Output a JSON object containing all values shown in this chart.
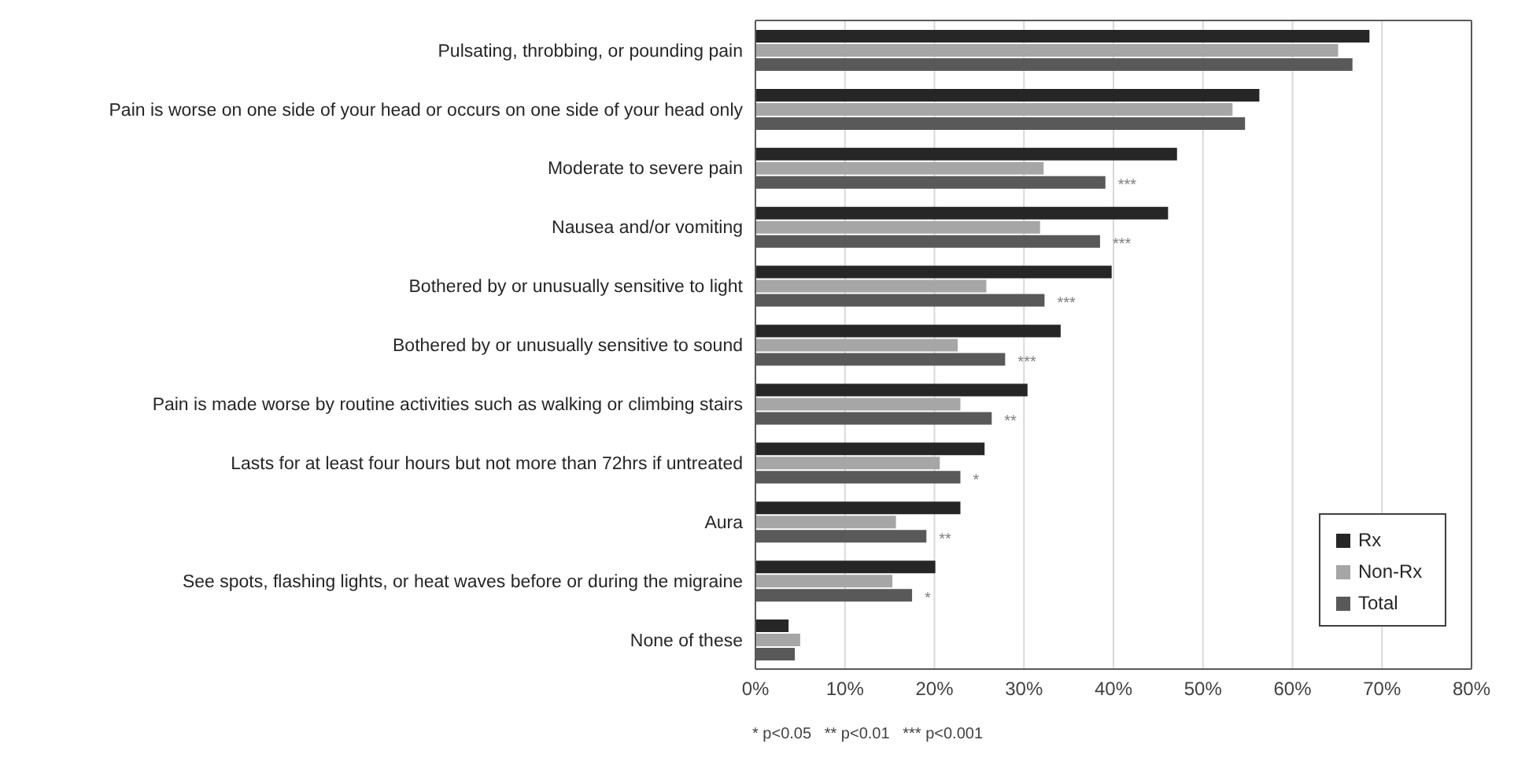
{
  "chart_data": {
    "type": "bar",
    "orientation": "horizontal",
    "categories": [
      "Pulsating, throbbing, or pounding pain",
      "Pain is worse on one side of your head or occurs on one side of your head only",
      "Moderate to severe pain",
      "Nausea and/or vomiting",
      "Bothered by or unusually sensitive to light",
      "Bothered by or unusually sensitive to sound",
      "Pain is made worse by routine activities such as walking or climbing stairs",
      "Lasts for at least four hours but not more than 72hrs if untreated",
      "Aura",
      "See spots, flashing lights, or heat waves before or during the migraine",
      "None of these"
    ],
    "series": [
      {
        "name": "Rx",
        "color": "#262626",
        "values": [
          68.6,
          56.3,
          47.1,
          46.1,
          39.8,
          34.1,
          30.4,
          25.6,
          22.9,
          20.1,
          3.7
        ]
      },
      {
        "name": "Non-Rx",
        "color": "#a6a6a6",
        "values": [
          65.1,
          53.3,
          32.2,
          31.8,
          25.8,
          22.6,
          22.9,
          20.6,
          15.7,
          15.3,
          5.0
        ]
      },
      {
        "name": "Total",
        "color": "#595959",
        "values": [
          66.7,
          54.7,
          39.1,
          38.5,
          32.3,
          27.9,
          26.4,
          22.9,
          19.1,
          17.5,
          4.4
        ]
      }
    ],
    "xlim": [
      0,
      80
    ],
    "xticks": [
      {
        "value": 0,
        "label": "0%"
      },
      {
        "value": 10,
        "label": "10%"
      },
      {
        "value": 20,
        "label": "20%"
      },
      {
        "value": 30,
        "label": "30%"
      },
      {
        "value": 40,
        "label": "40%"
      },
      {
        "value": 50,
        "label": "50%"
      },
      {
        "value": 60,
        "label": "60%"
      },
      {
        "value": 70,
        "label": "70%"
      },
      {
        "value": 80,
        "label": "80%"
      }
    ],
    "grid": "x",
    "legend": "bottom right",
    "annotations": [
      {
        "text": "***",
        "x": 39.1,
        "y": "Moderate to severe pain"
      },
      {
        "text": "***",
        "x": 38.5,
        "y": "Nausea and/or vomiting"
      },
      {
        "text": "***",
        "x": 32.3,
        "y": "Bothered by or unusually sensitive to light"
      },
      {
        "text": "***",
        "x": 27.9,
        "y": "Bothered by or unusually sensitive to sound"
      },
      {
        "text": "**",
        "x": 26.4,
        "y": "Pain is made worse by routine activities such as walking or climbing stairs"
      },
      {
        "text": "*",
        "x": 22.9,
        "y": "Lasts for at least four hours but not more than 72hrs if untreated"
      },
      {
        "text": "**",
        "x": 19.1,
        "y": "Aura"
      },
      {
        "text": "*",
        "x": 17.5,
        "y": "See spots, flashing lights, or heat waves before or during the migraine"
      },
      "* p<0.05   ** p<0.01   *** p<0.001"
    ]
  }
}
